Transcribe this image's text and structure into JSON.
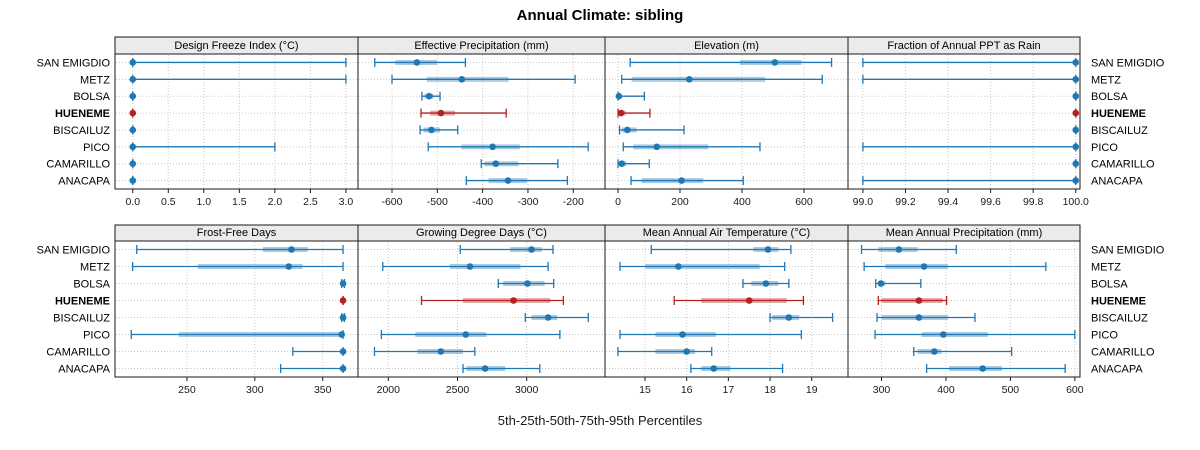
{
  "title": "Annual Climate: sibling",
  "footer_label": "5th-25th-50th-75th-95th Percentiles",
  "stations": [
    "SAN EMIGDIO",
    "METZ",
    "BOLSA",
    "HUENEME",
    "BISCAILUZ",
    "PICO",
    "CAMARILLO",
    "ANACAPA"
  ],
  "highlight_station": "HUENEME",
  "percentile_levels": [
    "5th",
    "25th",
    "50th",
    "75th",
    "95th"
  ],
  "colors": {
    "series": "#1f77b4",
    "highlight": "#b22222",
    "header_bg": "#ebebeb",
    "border": "#1a1a1a",
    "grid": "#c8c8c8",
    "text": "#000000"
  },
  "chart_data": [
    {
      "type": "dot-whisker",
      "title": "Design Freeze Index (°C)",
      "ticks": [
        0.0,
        0.5,
        1.0,
        1.5,
        2.0,
        2.5,
        3.0
      ],
      "tick_labels": [
        "0.0",
        "0.5",
        "1.0",
        "1.5",
        "2.0",
        "2.5",
        "3.0"
      ],
      "xlim": [
        -0.25,
        3.17
      ],
      "values": [
        [
          0,
          0,
          0,
          0,
          3.0
        ],
        [
          0,
          0,
          0,
          0,
          3.0
        ],
        [
          0,
          0,
          0,
          0,
          0
        ],
        [
          0,
          0,
          0,
          0,
          0
        ],
        [
          0,
          0,
          0,
          0,
          0
        ],
        [
          0,
          0,
          0,
          0,
          2.0
        ],
        [
          0,
          0,
          0,
          0,
          0
        ],
        [
          0,
          0,
          0,
          0,
          0
        ]
      ]
    },
    {
      "type": "dot-whisker",
      "title": "Effective Precipitation (mm)",
      "ticks": [
        -600,
        -500,
        -400,
        -300,
        -200
      ],
      "tick_labels": [
        "-600",
        "-500",
        "-400",
        "-300",
        "-200"
      ],
      "xlim": [
        -675,
        -130
      ],
      "values": [
        [
          -638,
          -593,
          -545,
          -501,
          -438
        ],
        [
          -600,
          -523,
          -446,
          -343,
          -196
        ],
        [
          -534,
          -528,
          -518,
          -508,
          -494
        ],
        [
          -536,
          -516,
          -492,
          -461,
          -348
        ],
        [
          -538,
          -530,
          -513,
          -494,
          -455
        ],
        [
          -520,
          -447,
          -378,
          -318,
          -167
        ],
        [
          -403,
          -396,
          -371,
          -321,
          -234
        ],
        [
          -436,
          -387,
          -344,
          -302,
          -213
        ]
      ]
    },
    {
      "type": "dot-whisker",
      "title": "Elevation (m)",
      "ticks": [
        0,
        200,
        400,
        600
      ],
      "tick_labels": [
        "0",
        "200",
        "400",
        "600"
      ],
      "xlim": [
        -42,
        742
      ],
      "values": [
        [
          39,
          394,
          506,
          592,
          689
        ],
        [
          12,
          44,
          230,
          474,
          659
        ],
        [
          0,
          1,
          3,
          10,
          85
        ],
        [
          0,
          2,
          10,
          25,
          103
        ],
        [
          5,
          12,
          30,
          60,
          213
        ],
        [
          17,
          49,
          125,
          291,
          458
        ],
        [
          0,
          3,
          12,
          26,
          101
        ],
        [
          42,
          76,
          205,
          275,
          404
        ]
      ]
    },
    {
      "type": "dot-whisker",
      "title": "Fraction of Annual PPT as Rain",
      "ticks": [
        99.0,
        99.2,
        99.4,
        99.6,
        99.8,
        100.0
      ],
      "tick_labels": [
        "99.0",
        "99.2",
        "99.4",
        "99.6",
        "99.8",
        "100.0"
      ],
      "xlim": [
        98.93,
        100.02
      ],
      "values": [
        [
          99.0,
          100,
          100,
          100,
          100
        ],
        [
          99.0,
          100,
          100,
          100,
          100
        ],
        [
          100,
          100,
          100,
          100,
          100
        ],
        [
          100,
          100,
          100,
          100,
          100
        ],
        [
          100,
          100,
          100,
          100,
          100
        ],
        [
          99.0,
          100,
          100,
          100,
          100
        ],
        [
          100,
          100,
          100,
          100,
          100
        ],
        [
          99.0,
          100,
          100,
          100,
          100
        ]
      ]
    },
    {
      "type": "dot-whisker",
      "title": "Frost-Free Days",
      "ticks": [
        250,
        300,
        350
      ],
      "tick_labels": [
        "250",
        "300",
        "350"
      ],
      "xlim": [
        197,
        376
      ],
      "values": [
        [
          213,
          306,
          327,
          339,
          365
        ],
        [
          210,
          258,
          325,
          335,
          365
        ],
        [
          364,
          365,
          365,
          365,
          366
        ],
        [
          365,
          365,
          365,
          365,
          365
        ],
        [
          364,
          365,
          365,
          365,
          366
        ],
        [
          209,
          244,
          364,
          365,
          365
        ],
        [
          328,
          363,
          365,
          365,
          365
        ],
        [
          319,
          363,
          365,
          365,
          365
        ]
      ]
    },
    {
      "type": "dot-whisker",
      "title": "Growing Degree Days (°C)",
      "ticks": [
        2000,
        2500,
        3000
      ],
      "tick_labels": [
        "2000",
        "2500",
        "3000"
      ],
      "xlim": [
        1781,
        3566
      ],
      "values": [
        [
          2520,
          2880,
          3035,
          3110,
          3190
        ],
        [
          1960,
          2445,
          2590,
          2955,
          3155
        ],
        [
          2795,
          2830,
          3005,
          3130,
          3195
        ],
        [
          2240,
          2540,
          2905,
          3170,
          3265
        ],
        [
          2990,
          3035,
          3155,
          3220,
          3445
        ],
        [
          1950,
          2195,
          2560,
          2710,
          3240
        ],
        [
          1900,
          2210,
          2380,
          2540,
          2625
        ],
        [
          2540,
          2565,
          2700,
          2845,
          3095
        ]
      ]
    },
    {
      "type": "dot-whisker",
      "title": "Mean Annual Air Temperature (°C)",
      "ticks": [
        15,
        16,
        17,
        18,
        19
      ],
      "tick_labels": [
        "15",
        "16",
        "17",
        "18",
        "19"
      ],
      "xlim": [
        14.04,
        19.87
      ],
      "values": [
        [
          15.15,
          17.6,
          17.95,
          18.2,
          18.5
        ],
        [
          14.4,
          15.0,
          15.8,
          17.75,
          18.35
        ],
        [
          17.35,
          17.55,
          17.9,
          18.2,
          18.45
        ],
        [
          15.7,
          16.35,
          17.5,
          18.4,
          18.8
        ],
        [
          18.0,
          18.05,
          18.45,
          18.7,
          19.5
        ],
        [
          14.4,
          15.25,
          15.9,
          16.7,
          18.75
        ],
        [
          14.35,
          15.25,
          16.0,
          16.2,
          16.6
        ],
        [
          16.1,
          16.35,
          16.65,
          17.05,
          18.3
        ]
      ]
    },
    {
      "type": "dot-whisker",
      "title": "Mean Annual Precipitation (mm)",
      "ticks": [
        300,
        400,
        500,
        600
      ],
      "tick_labels": [
        "300",
        "400",
        "500",
        "600"
      ],
      "xlim": [
        248,
        608
      ],
      "values": [
        [
          269,
          295,
          327,
          356,
          416
        ],
        [
          273,
          306,
          366,
          403,
          555
        ],
        [
          291,
          295,
          299,
          306,
          361
        ],
        [
          295,
          300,
          358,
          395,
          401
        ],
        [
          293,
          300,
          358,
          403,
          445
        ],
        [
          290,
          362,
          396,
          465,
          600
        ],
        [
          350,
          356,
          382,
          393,
          502
        ],
        [
          370,
          405,
          457,
          487,
          585
        ]
      ]
    }
  ]
}
